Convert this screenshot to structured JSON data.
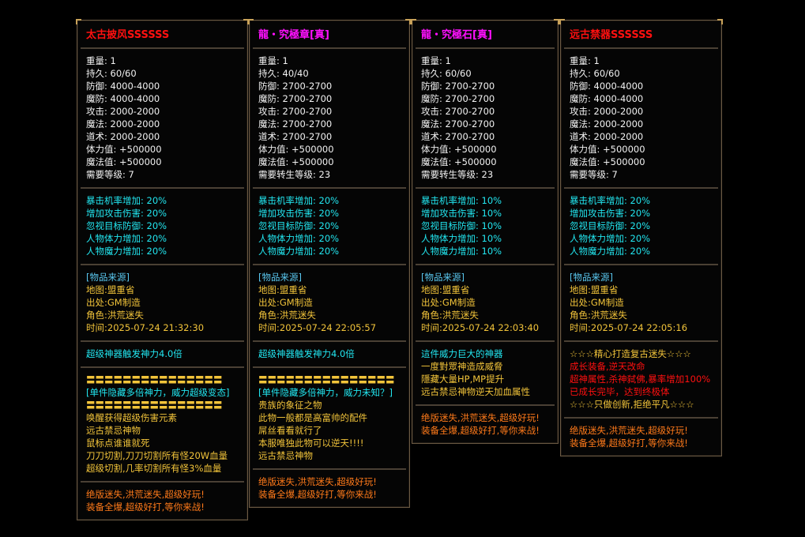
{
  "colors": {
    "white": "#f2f2f2",
    "cyan": "#22e6f0",
    "source": "#5ac8f0",
    "yellow": "#f2c43a",
    "orange": "#ff7a1a",
    "red": "#ff1010",
    "magenta": "#ff10ff"
  },
  "panels": [
    {
      "title": "太古披风SSSSSS",
      "title_color": "red",
      "sections": [
        {
          "color": "white",
          "lines": [
            "重量: 1",
            "持久: 60/60",
            "防御: 4000-4000",
            "魔防: 4000-4000",
            "攻击: 2000-2000",
            "魔法: 2000-2000",
            "道术: 2000-2000",
            "体力值: +500000",
            "魔法值: +500000",
            "需要等级: 7"
          ]
        },
        {
          "color": "cyan",
          "lines": [
            "暴击机率增加: 20%",
            "增加攻击伤害: 20%",
            "忽视目标防御: 20%",
            "人物体力增加: 20%",
            "人物魔力增加: 20%"
          ]
        },
        {
          "color": "yellow",
          "first_color": "source",
          "lines": [
            "[物品来源]",
            "地图:盟重省",
            "出处:GM制造",
            "角色:洪荒迷失",
            "时间:2025-07-24 21:32:30"
          ]
        },
        {
          "color": "cyan",
          "lines": [
            "超级神器触发神力4.0倍"
          ]
        },
        {
          "color": "yellow",
          "line_colors": {
            "1": "cyan"
          },
          "lines": [
            "〓〓〓〓〓〓〓〓〓〓〓〓〓〓〓",
            "[单件隐藏多倍神力，威力超级变态]",
            "〓〓〓〓〓〓〓〓〓〓〓〓〓〓〓",
            "唤醒获得超级伤害元素",
            "远古禁忌神物",
            "鼠标点谁谁就死",
            "刀刀切割,刀刀切割所有怪20W血量",
            "超级切割,几率切割所有怪3%血量"
          ]
        },
        {
          "color": "orange",
          "lines": [
            "绝版迷失,洪荒迷失,超级好玩!",
            "装备全爆,超级好打,等你来战!"
          ]
        }
      ]
    },
    {
      "title": "龍・究極章[真]",
      "title_color": "magenta",
      "sections": [
        {
          "color": "white",
          "lines": [
            "重量: 1",
            "持久: 40/40",
            "防御: 2700-2700",
            "魔防: 2700-2700",
            "攻击: 2700-2700",
            "魔法: 2700-2700",
            "道术: 2700-2700",
            "体力值: +500000",
            "魔法值: +500000",
            "需要转生等级: 23"
          ]
        },
        {
          "color": "cyan",
          "lines": [
            "暴击机率增加: 20%",
            "增加攻击伤害: 20%",
            "忽视目标防御: 20%",
            "人物体力增加: 20%",
            "人物魔力增加: 20%"
          ]
        },
        {
          "color": "yellow",
          "first_color": "source",
          "lines": [
            "[物品来源]",
            "地图:盟重省",
            "出处:GM制造",
            "角色:洪荒迷失",
            "时间:2025-07-24 22:05:57"
          ]
        },
        {
          "color": "cyan",
          "lines": [
            "超级神器触发神力4.0倍"
          ]
        },
        {
          "color": "yellow",
          "line_colors": {
            "1": "cyan"
          },
          "lines": [
            "〓〓〓〓〓〓〓〓〓〓〓〓〓〓〓",
            "[单件隐藏多倍神力，威力未知？]",
            "贵族的象征之物",
            "此物一般都是高富帅的配件",
            "屌丝看看就行了",
            "本服唯独此物可以逆天!!!!",
            "远古禁忌神物"
          ]
        },
        {
          "color": "orange",
          "lines": [
            "绝版迷失,洪荒迷失,超级好玩!",
            "装备全爆,超级好打,等你来战!"
          ]
        }
      ]
    },
    {
      "title": "龍・究極石[真]",
      "title_color": "magenta",
      "sections": [
        {
          "color": "white",
          "lines": [
            "重量: 1",
            "持久: 60/60",
            "防御: 2700-2700",
            "魔防: 2700-2700",
            "攻击: 2700-2700",
            "魔法: 2700-2700",
            "道术: 2700-2700",
            "体力值: +500000",
            "魔法值: +500000",
            "需要转生等级: 23"
          ]
        },
        {
          "color": "cyan",
          "lines": [
            "暴击机率增加: 10%",
            "增加攻击伤害: 10%",
            "忽视目标防御: 10%",
            "人物体力增加: 10%",
            "人物魔力增加: 10%"
          ]
        },
        {
          "color": "yellow",
          "first_color": "source",
          "lines": [
            "[物品来源]",
            "地图:盟重省",
            "出处:GM制造",
            "角色:洪荒迷失",
            "时间:2025-07-24 22:03:40"
          ]
        },
        {
          "color": "yellow",
          "first_color": "cyan",
          "lines": [
            "這件威力巨大的神器",
            "一度對眾神造成威脅",
            "隱藏大量HP,MP提升",
            "远古禁忌神物逆天加血属性"
          ]
        },
        {
          "color": "orange",
          "lines": [
            "绝版迷失,洪荒迷失,超级好玩!",
            "装备全爆,超级好打,等你来战!"
          ]
        }
      ]
    },
    {
      "title": "远古禁器SSSSSS",
      "title_color": "red",
      "sections": [
        {
          "color": "white",
          "lines": [
            "重量: 1",
            "持久: 60/60",
            "防御: 4000-4000",
            "魔防: 4000-4000",
            "攻击: 2000-2000",
            "魔法: 2000-2000",
            "道术: 2000-2000",
            "体力值: +500000",
            "魔法值: +500000",
            "需要等级: 7"
          ]
        },
        {
          "color": "cyan",
          "lines": [
            "暴击机率增加: 20%",
            "增加攻击伤害: 20%",
            "忽视目标防御: 20%",
            "人物体力增加: 20%",
            "人物魔力增加: 20%"
          ]
        },
        {
          "color": "yellow",
          "first_color": "source",
          "lines": [
            "[物品来源]",
            "地图:盟重省",
            "出处:GM制造",
            "角色:洪荒迷失",
            "时间:2025-07-24 22:05:16"
          ]
        },
        {
          "color": "red",
          "line_colors": {
            "0": "yellow",
            "4": "yellow"
          },
          "lines": [
            "☆☆☆精心打造复古迷失☆☆☆",
            "成长装备,逆天改命",
            "超神属性,杀神弑佛,暴率增加100%",
            "已成长完毕，达到终极体",
            "☆☆☆只做创新,拒绝平凡☆☆☆"
          ]
        },
        {
          "color": "orange",
          "lines": [
            "绝版迷失,洪荒迷失,超级好玩!",
            "装备全爆,超级好打,等你来战!"
          ]
        }
      ]
    }
  ]
}
